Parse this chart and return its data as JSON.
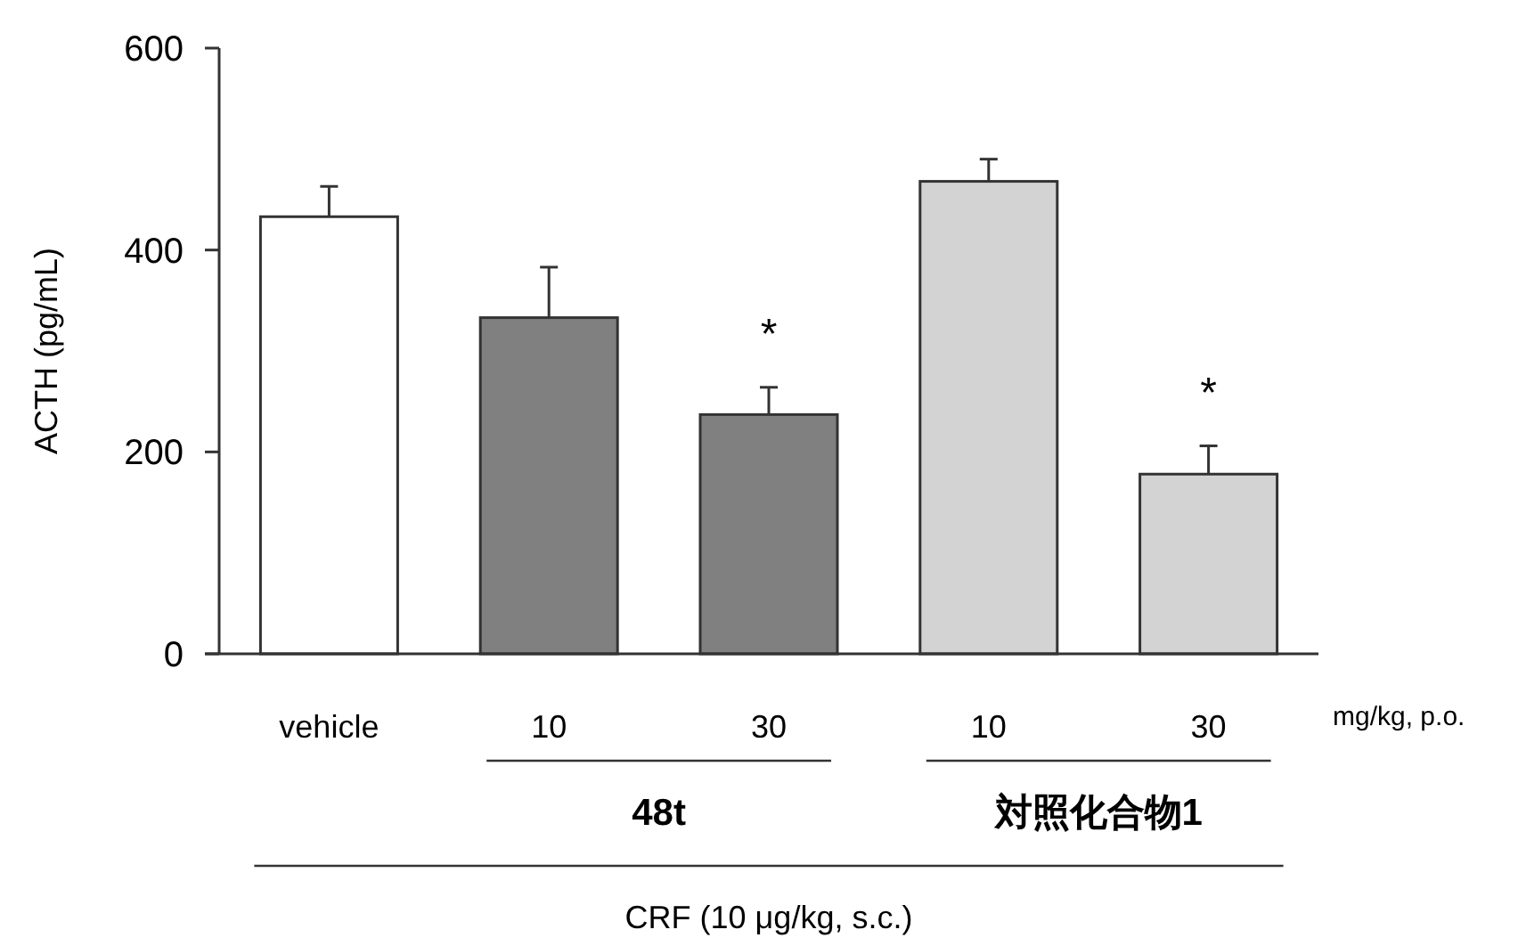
{
  "chart_data": {
    "type": "bar",
    "xlabel": "CRF (10 μg/kg, s.c.)",
    "ylabel": "ACTH (pg/mL)",
    "categories": [
      "vehicle",
      "10",
      "30",
      "10",
      "30"
    ],
    "values": [
      433,
      333,
      237,
      468,
      178
    ],
    "errors": [
      30,
      50,
      27,
      22,
      28
    ],
    "colors": [
      "#ffffff",
      "#808080",
      "#808080",
      "#d3d3d3",
      "#d3d3d3"
    ],
    "value_labels": [
      null,
      null,
      "*",
      null,
      "*"
    ],
    "annotations": [
      "48t",
      "対照化合物1",
      "mg/kg, p.o."
    ],
    "ylim": [
      0,
      600
    ],
    "yticks": [
      0,
      200,
      400,
      600
    ]
  }
}
